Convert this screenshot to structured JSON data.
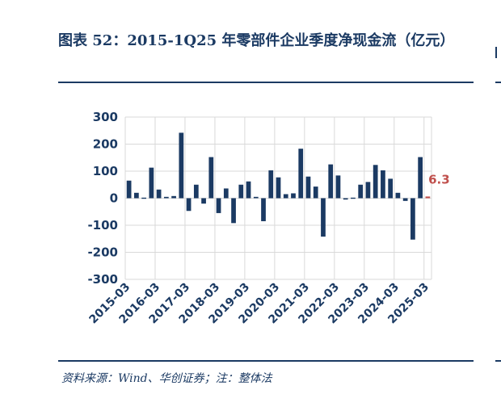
{
  "title": "图表 52：2015-1Q25 年零部件企业季度净现金流（亿元）",
  "source": "资料来源：Wind、华创证券；注：整体法",
  "colors": {
    "bar": "#1b3a63",
    "highlight": "#c0504d",
    "grid": "#d9d9d9",
    "text": "#1b3a63"
  },
  "chart_data": {
    "type": "bar",
    "title": "",
    "xlabel": "",
    "ylabel": "",
    "ylim": [
      -300,
      300
    ],
    "yticks": [
      -300,
      -200,
      -100,
      0,
      100,
      200,
      300
    ],
    "grid": true,
    "x_tick_labels": [
      "2015-03",
      "2016-03",
      "2017-03",
      "2018-03",
      "2019-03",
      "2020-03",
      "2021-03",
      "2022-03",
      "2023-03",
      "2024-03",
      "2025-03"
    ],
    "categories": [
      "2015-03",
      "2015-06",
      "2015-09",
      "2015-12",
      "2016-03",
      "2016-06",
      "2016-09",
      "2016-12",
      "2017-03",
      "2017-06",
      "2017-09",
      "2017-12",
      "2018-03",
      "2018-06",
      "2018-09",
      "2018-12",
      "2019-03",
      "2019-06",
      "2019-09",
      "2019-12",
      "2020-03",
      "2020-06",
      "2020-09",
      "2020-12",
      "2021-03",
      "2021-06",
      "2021-09",
      "2021-12",
      "2022-03",
      "2022-06",
      "2022-09",
      "2022-12",
      "2023-03",
      "2023-06",
      "2023-09",
      "2023-12",
      "2024-03",
      "2024-06",
      "2024-09",
      "2024-12",
      "2025-03"
    ],
    "values": [
      65,
      20,
      0,
      113,
      32,
      5,
      8,
      242,
      -47,
      50,
      -20,
      152,
      -55,
      36,
      -92,
      50,
      62,
      5,
      -85,
      103,
      77,
      15,
      18,
      183,
      80,
      43,
      -142,
      125,
      84,
      -5,
      3,
      50,
      60,
      123,
      103,
      72,
      20,
      -10,
      -153,
      152,
      6.3
    ],
    "highlight_index": 40,
    "data_labels": [
      {
        "category": "2025-03",
        "text": "6.3"
      }
    ]
  }
}
